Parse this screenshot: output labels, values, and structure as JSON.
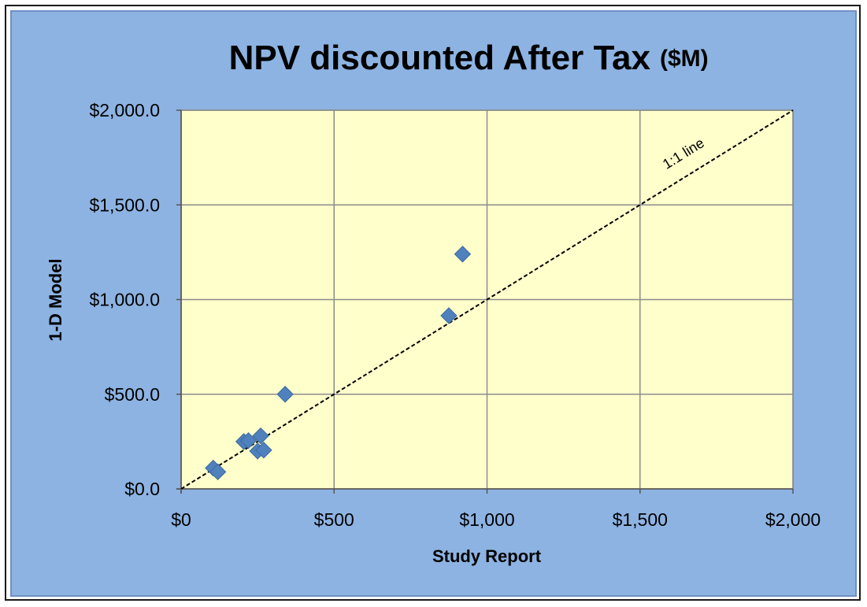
{
  "chart_data": {
    "type": "scatter",
    "title": "NPV discounted After Tax",
    "title_unit": "($M)",
    "xlabel": "Study Report",
    "ylabel": "1-D Model",
    "xlim": [
      0,
      2000
    ],
    "ylim": [
      0,
      2000
    ],
    "x_ticks": [
      0,
      500,
      1000,
      1500,
      2000
    ],
    "x_tick_labels": [
      "$0",
      "$500",
      "$1,000",
      "$1,500",
      "$2,000"
    ],
    "y_ticks": [
      0,
      500,
      1000,
      1500,
      2000
    ],
    "y_tick_labels": [
      "$0.0",
      "$500.0",
      "$1,000.0",
      "$1,500.0",
      "$2,000.0"
    ],
    "grid": true,
    "plot_background": "#ffffcc",
    "figure_background": "#8db3e2",
    "marker_color": "#4f81bd",
    "marker": "diamond",
    "series": [
      {
        "points": [
          {
            "x": 105,
            "y": 110
          },
          {
            "x": 120,
            "y": 90
          },
          {
            "x": 205,
            "y": 250
          },
          {
            "x": 220,
            "y": 255
          },
          {
            "x": 250,
            "y": 200
          },
          {
            "x": 260,
            "y": 280
          },
          {
            "x": 270,
            "y": 205
          },
          {
            "x": 340,
            "y": 500
          },
          {
            "x": 875,
            "y": 915
          },
          {
            "x": 920,
            "y": 1240
          }
        ]
      }
    ],
    "reference_line": {
      "label": "1:1 line",
      "from": [
        0,
        0
      ],
      "to": [
        2000,
        2000
      ],
      "style": "dashed",
      "label_at": [
        1650,
        1750
      ]
    }
  }
}
